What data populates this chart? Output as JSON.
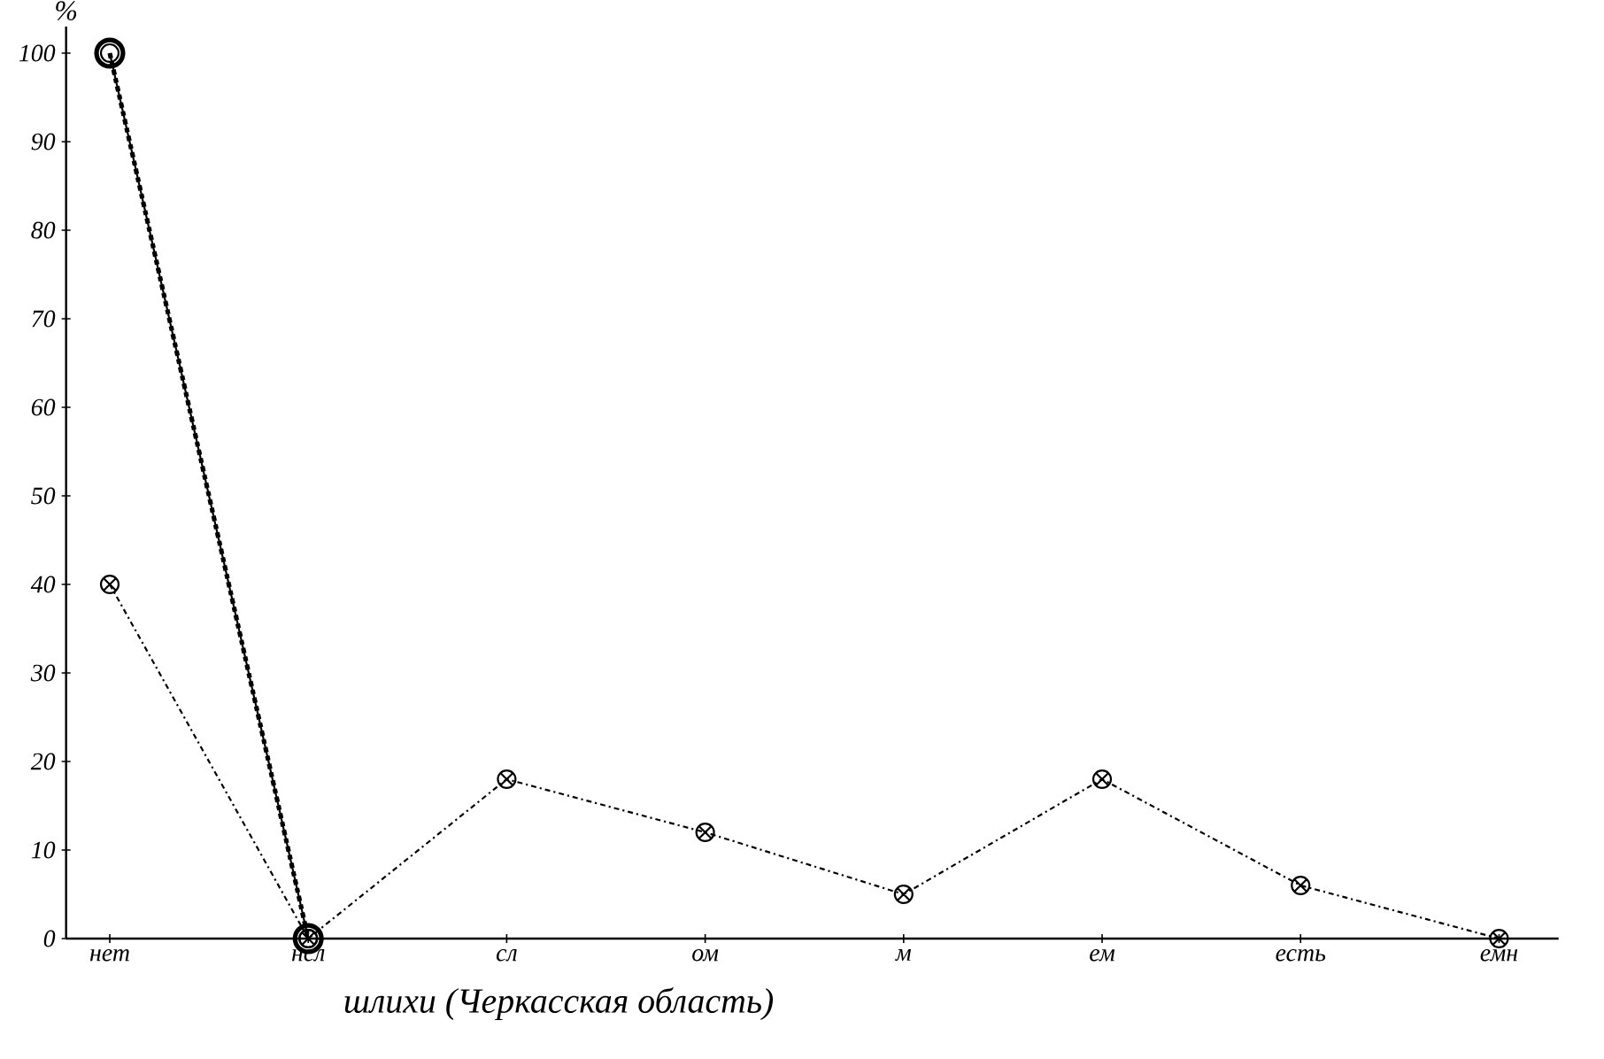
{
  "chart_data": {
    "type": "line",
    "title": "шлихи (Черкасская область)",
    "ylabel": "%",
    "categories": [
      "нет",
      "нсл",
      "сл",
      "ом",
      "м",
      "ем",
      "есть",
      "емн"
    ],
    "ylim": [
      0,
      103
    ],
    "yticks": [
      0,
      10,
      20,
      30,
      40,
      50,
      60,
      70,
      80,
      90,
      100
    ],
    "grid": false,
    "series": [
      {
        "color": "#000000",
        "line_style": "dashed",
        "marker": "circle",
        "values": [
          100,
          0,
          null,
          null,
          null,
          null,
          null,
          null
        ]
      },
      {
        "color": "#000000",
        "line_style": "solid",
        "marker": "circle",
        "values": [
          100,
          0,
          null,
          null,
          null,
          null,
          null,
          null
        ]
      },
      {
        "color": "#000000",
        "line_style": "dashed",
        "marker": "cross",
        "values": [
          40,
          0,
          18,
          12,
          5,
          18,
          6,
          0
        ]
      }
    ]
  }
}
